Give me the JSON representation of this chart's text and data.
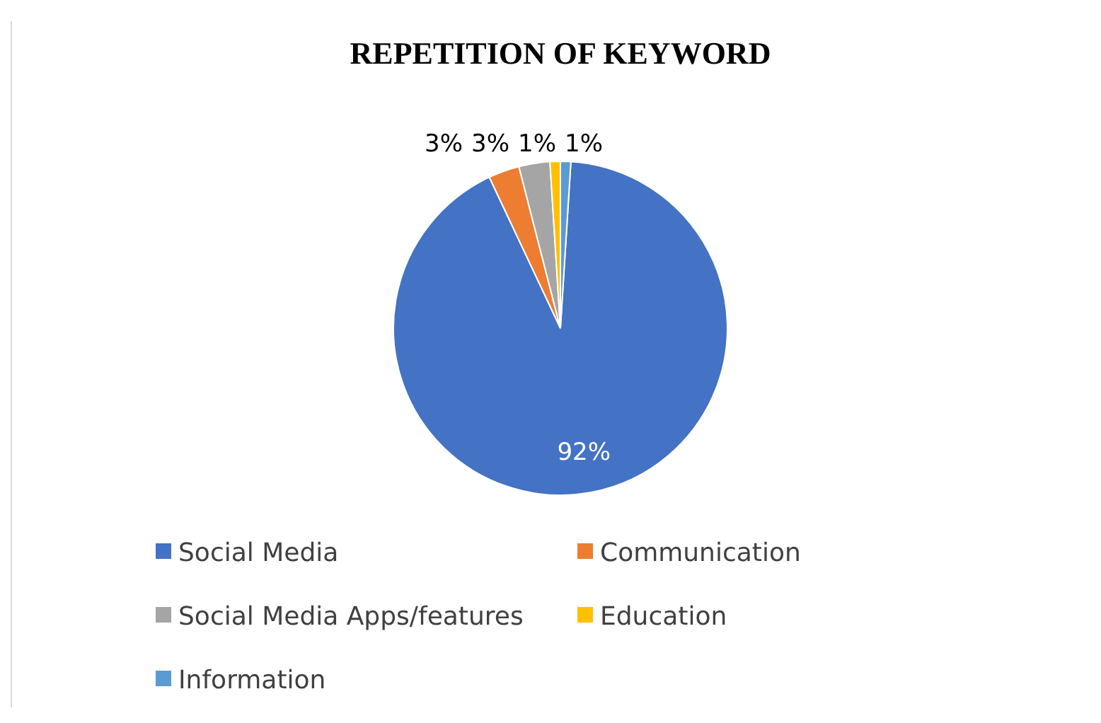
{
  "chart_data": {
    "type": "pie",
    "title": "REPETITION OF KEYWORD",
    "categories": [
      "Social Media",
      "Communication",
      "Social Media Apps/features",
      "Education",
      "Information"
    ],
    "values": [
      92,
      3,
      3,
      1,
      1
    ],
    "colors": [
      "#4472c4",
      "#ed7d31",
      "#a5a5a5",
      "#ffc000",
      "#5b9bd5"
    ],
    "value_labels": [
      "92%",
      "3%",
      "3%",
      "1%",
      "1%"
    ],
    "legend": "bottom"
  }
}
